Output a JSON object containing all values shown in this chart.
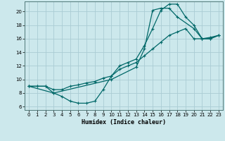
{
  "xlabel": "Humidex (Indice chaleur)",
  "bg_color": "#cce8ec",
  "grid_color": "#aaccd4",
  "line_color": "#006868",
  "xlim": [
    -0.5,
    23.5
  ],
  "ylim": [
    5.5,
    21.5
  ],
  "xticks": [
    0,
    1,
    2,
    3,
    4,
    5,
    6,
    7,
    8,
    9,
    10,
    11,
    12,
    13,
    14,
    15,
    16,
    17,
    18,
    19,
    20,
    21,
    22,
    23
  ],
  "yticks": [
    6,
    8,
    10,
    12,
    14,
    16,
    18,
    20
  ],
  "line1_x": [
    0,
    1,
    2,
    3,
    4,
    5,
    6,
    7,
    8,
    9,
    10,
    11,
    12,
    13,
    14,
    15,
    16,
    17,
    18,
    19,
    20,
    21,
    22,
    23
  ],
  "line1_y": [
    9,
    9,
    9,
    8,
    7.5,
    6.8,
    6.5,
    6.5,
    6.8,
    8.5,
    10.5,
    12,
    12.5,
    13,
    15,
    17.5,
    20.2,
    21.1,
    21.1,
    19.2,
    18.0,
    16.0,
    16.0,
    16.5
  ],
  "line2_x": [
    0,
    1,
    2,
    3,
    4,
    5,
    6,
    7,
    8,
    9,
    10,
    11,
    12,
    13,
    14,
    15,
    16,
    17,
    18,
    19,
    20,
    21,
    22,
    23
  ],
  "line2_y": [
    9,
    9,
    9,
    8.5,
    8.5,
    9.0,
    9.2,
    9.5,
    9.7,
    10.2,
    10.5,
    11.5,
    12.0,
    12.5,
    13.5,
    14.5,
    15.5,
    16.5,
    17.0,
    17.5,
    16.0,
    16.0,
    16.2,
    16.5
  ],
  "line3_x": [
    0,
    3,
    10,
    13,
    14,
    15,
    16,
    17,
    18,
    20,
    21,
    22,
    23
  ],
  "line3_y": [
    9,
    8,
    10,
    11.8,
    14.5,
    20.2,
    20.5,
    20.5,
    19.2,
    17.5,
    16.0,
    16.0,
    16.5
  ]
}
